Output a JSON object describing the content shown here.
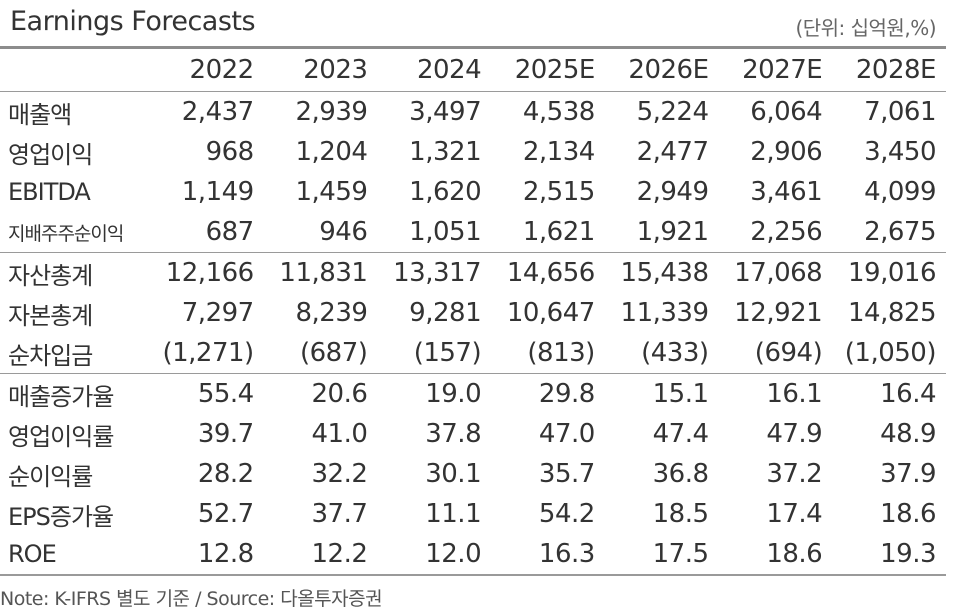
{
  "title": "Earnings Forecasts",
  "unit": "(단위: 십억원,%)",
  "columns": [
    "2022",
    "2023",
    "2024",
    "2025E",
    "2026E",
    "2027E",
    "2028E"
  ],
  "groups": [
    [
      {
        "label": "매출액",
        "values": [
          "2,437",
          "2,939",
          "3,497",
          "4,538",
          "5,224",
          "6,064",
          "7,061"
        ]
      },
      {
        "label": "영업이익",
        "values": [
          "968",
          "1,204",
          "1,321",
          "2,134",
          "2,477",
          "2,906",
          "3,450"
        ]
      },
      {
        "label": "EBITDA",
        "values": [
          "1,149",
          "1,459",
          "1,620",
          "2,515",
          "2,949",
          "3,461",
          "4,099"
        ]
      },
      {
        "label": "지배주주순이익",
        "values": [
          "687",
          "946",
          "1,051",
          "1,621",
          "1,921",
          "2,256",
          "2,675"
        ]
      }
    ],
    [
      {
        "label": "자산총계",
        "values": [
          "12,166",
          "11,831",
          "13,317",
          "14,656",
          "15,438",
          "17,068",
          "19,016"
        ]
      },
      {
        "label": "자본총계",
        "values": [
          "7,297",
          "8,239",
          "9,281",
          "10,647",
          "11,339",
          "12,921",
          "14,825"
        ]
      },
      {
        "label": "순차입금",
        "values": [
          "(1,271)",
          "(687)",
          "(157)",
          "(813)",
          "(433)",
          "(694)",
          "(1,050)"
        ]
      }
    ],
    [
      {
        "label": "매출증가율",
        "values": [
          "55.4",
          "20.6",
          "19.0",
          "29.8",
          "15.1",
          "16.1",
          "16.4"
        ]
      },
      {
        "label": "영업이익률",
        "values": [
          "39.7",
          "41.0",
          "37.8",
          "47.0",
          "47.4",
          "47.9",
          "48.9"
        ]
      },
      {
        "label": "순이익률",
        "values": [
          "28.2",
          "32.2",
          "30.1",
          "35.7",
          "36.8",
          "37.2",
          "37.9"
        ]
      },
      {
        "label": "EPS증가율",
        "values": [
          "52.7",
          "37.7",
          "11.1",
          "54.2",
          "18.5",
          "17.4",
          "18.6"
        ]
      },
      {
        "label": "ROE",
        "values": [
          "12.8",
          "12.2",
          "12.0",
          "16.3",
          "17.5",
          "18.6",
          "19.3"
        ]
      }
    ]
  ],
  "note": "Note: K-IFRS 별도 기준 / Source: 다올투자증권"
}
